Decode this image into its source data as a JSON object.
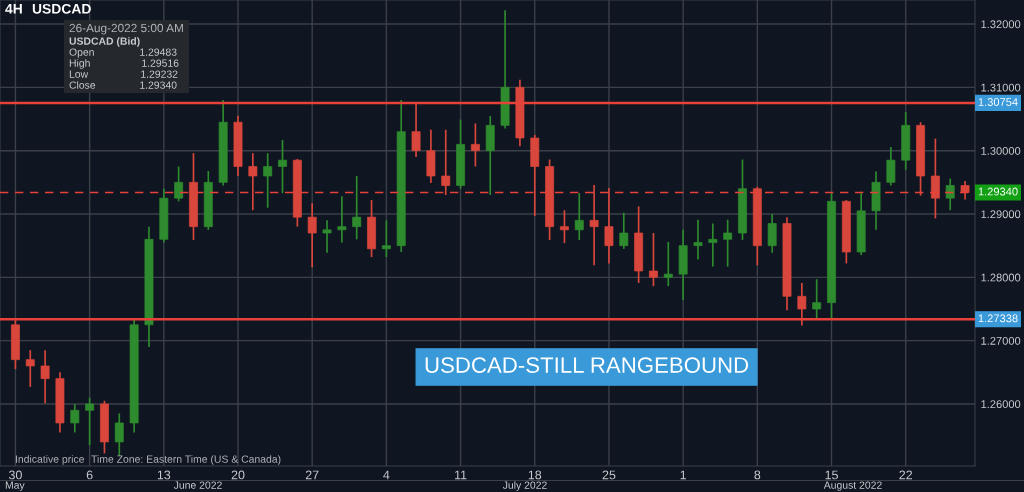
{
  "chart_data": {
    "type": "candlestick",
    "title": "4H",
    "subtitle": "USDCAD",
    "categories": [
      "30",
      null,
      null,
      null,
      null,
      "6",
      null,
      null,
      null,
      null,
      "13",
      null,
      null,
      null,
      null,
      "20",
      null,
      null,
      null,
      null,
      "27",
      null,
      null,
      null,
      null,
      "4",
      null,
      null,
      null,
      null,
      "11",
      null,
      null,
      null,
      null,
      "18",
      null,
      null,
      null,
      null,
      "25",
      null,
      null,
      null,
      null,
      "1",
      null,
      null,
      null,
      null,
      "8",
      null,
      null,
      null,
      null,
      "15",
      null,
      null,
      null,
      null,
      "22",
      null,
      null,
      null,
      null
    ],
    "ohlc": [
      [
        1.2725,
        1.2735,
        1.2655,
        1.267
      ],
      [
        1.267,
        1.2685,
        1.2627,
        1.266
      ],
      [
        1.266,
        1.2685,
        1.2601,
        1.264
      ],
      [
        1.264,
        1.265,
        1.2555,
        1.257
      ],
      [
        1.257,
        1.26,
        1.2555,
        1.259
      ],
      [
        1.259,
        1.261,
        1.2535,
        1.26
      ],
      [
        1.26,
        1.2605,
        1.2522,
        1.254
      ],
      [
        1.254,
        1.2585,
        1.2518,
        1.257
      ],
      [
        1.257,
        1.2735,
        1.2555,
        1.2725
      ],
      [
        1.2725,
        1.288,
        1.269,
        1.286
      ],
      [
        1.286,
        1.294,
        1.2855,
        1.2925
      ],
      [
        1.2925,
        1.2975,
        1.292,
        1.295
      ],
      [
        1.295,
        1.2996,
        1.2859,
        1.288
      ],
      [
        1.288,
        1.2968,
        1.2875,
        1.295
      ],
      [
        1.295,
        1.308,
        1.2945,
        1.3045
      ],
      [
        1.3045,
        1.3055,
        1.296,
        1.2975
      ],
      [
        1.2975,
        1.2996,
        1.2906,
        1.296
      ],
      [
        1.296,
        1.2996,
        1.291,
        1.2975
      ],
      [
        1.2975,
        1.3017,
        1.2933,
        1.2985
      ],
      [
        1.2985,
        1.2987,
        1.288,
        1.2895
      ],
      [
        1.2895,
        1.2917,
        1.2816,
        1.287
      ],
      [
        1.287,
        1.289,
        1.2839,
        1.2875
      ],
      [
        1.2875,
        1.2928,
        1.2855,
        1.288
      ],
      [
        1.288,
        1.296,
        1.286,
        1.2895
      ],
      [
        1.2895,
        1.2922,
        1.2832,
        1.2845
      ],
      [
        1.2845,
        1.289,
        1.2832,
        1.285
      ],
      [
        1.285,
        1.308,
        1.284,
        1.303
      ],
      [
        1.303,
        1.3075,
        1.299,
        1.3
      ],
      [
        1.3,
        1.3033,
        1.2949,
        1.296
      ],
      [
        1.296,
        1.3033,
        1.293,
        1.2945
      ],
      [
        1.2945,
        1.3049,
        1.294,
        1.301
      ],
      [
        1.301,
        1.3043,
        1.2975,
        1.3
      ],
      [
        1.3,
        1.3055,
        1.293,
        1.304
      ],
      [
        1.304,
        1.3222,
        1.3035,
        1.31
      ],
      [
        1.31,
        1.3112,
        1.3007,
        1.302
      ],
      [
        1.302,
        1.3025,
        1.2897,
        1.2975
      ],
      [
        1.2975,
        1.2986,
        1.2859,
        1.288
      ],
      [
        1.288,
        1.2906,
        1.2854,
        1.2875
      ],
      [
        1.2875,
        1.2933,
        1.2859,
        1.289
      ],
      [
        1.289,
        1.2946,
        1.2819,
        1.288
      ],
      [
        1.288,
        1.2941,
        1.2822,
        1.285
      ],
      [
        1.285,
        1.2902,
        1.2845,
        1.287
      ],
      [
        1.287,
        1.2912,
        1.2791,
        1.281
      ],
      [
        1.281,
        1.287,
        1.2786,
        1.28
      ],
      [
        1.28,
        1.2856,
        1.2786,
        1.2805
      ],
      [
        1.2805,
        1.2875,
        1.2764,
        1.285
      ],
      [
        1.285,
        1.2891,
        1.2828,
        1.2855
      ],
      [
        1.2855,
        1.2885,
        1.2817,
        1.286
      ],
      [
        1.286,
        1.2891,
        1.2817,
        1.287
      ],
      [
        1.287,
        1.2986,
        1.2859,
        1.294
      ],
      [
        1.294,
        1.2943,
        1.2819,
        1.285
      ],
      [
        1.285,
        1.29,
        1.2839,
        1.2885
      ],
      [
        1.2885,
        1.2895,
        1.2748,
        1.277
      ],
      [
        1.277,
        1.2791,
        1.2724,
        1.275
      ],
      [
        1.275,
        1.2797,
        1.2735,
        1.276
      ],
      [
        1.276,
        1.2935,
        1.2735,
        1.292
      ],
      [
        1.292,
        1.2922,
        1.2822,
        1.284
      ],
      [
        1.284,
        1.2935,
        1.2835,
        1.2905
      ],
      [
        1.2905,
        1.2967,
        1.2875,
        1.295
      ],
      [
        1.295,
        1.3006,
        1.2945,
        1.2985
      ],
      [
        1.2985,
        1.3061,
        1.297,
        1.304
      ],
      [
        1.304,
        1.3045,
        1.2929,
        1.296
      ],
      [
        1.296,
        1.3019,
        1.2893,
        1.2925
      ],
      [
        1.2925,
        1.2956,
        1.2906,
        1.2945
      ],
      [
        1.2945,
        1.2952,
        1.2923,
        1.2934
      ]
    ],
    "colors": [
      "#d9463c",
      "#d9463c",
      "#d9463c",
      "#d9463c",
      "#2e8b2e",
      "#2e8b2e",
      "#d9463c",
      "#2e8b2e",
      "#2e8b2e",
      "#2e8b2e",
      "#2e8b2e",
      "#2e8b2e",
      "#d9463c",
      "#2e8b2e",
      "#2e8b2e",
      "#d9463c",
      "#d9463c",
      "#2e8b2e",
      "#2e8b2e",
      "#d9463c",
      "#d9463c",
      "#2e8b2e",
      "#2e8b2e",
      "#2e8b2e",
      "#d9463c",
      "#2e8b2e",
      "#2e8b2e",
      "#d9463c",
      "#d9463c",
      "#d9463c",
      "#2e8b2e",
      "#d9463c",
      "#2e8b2e",
      "#2e8b2e",
      "#d9463c",
      "#d9463c",
      "#d9463c",
      "#d9463c",
      "#2e8b2e",
      "#d9463c",
      "#d9463c",
      "#2e8b2e",
      "#d9463c",
      "#d9463c",
      "#2e8b2e",
      "#2e8b2e",
      "#2e8b2e",
      "#2e8b2e",
      "#2e8b2e",
      "#2e8b2e",
      "#d9463c",
      "#2e8b2e",
      "#d9463c",
      "#d9463c",
      "#2e8b2e",
      "#2e8b2e",
      "#d9463c",
      "#2e8b2e",
      "#2e8b2e",
      "#2e8b2e",
      "#2e8b2e",
      "#d9463c",
      "#d9463c",
      "#2e8b2e",
      "#d9463c"
    ],
    "ylim": [
      1.2502,
      1.3238
    ],
    "yticks": [
      {
        "value": 1.26,
        "label": "1.26000"
      },
      {
        "value": 1.27,
        "label": "1.27000"
      },
      {
        "value": 1.28,
        "label": "1.28000"
      },
      {
        "value": 1.29,
        "label": "1.29000"
      },
      {
        "value": 1.3,
        "label": "1.30000"
      },
      {
        "value": 1.31,
        "label": "1.31000"
      },
      {
        "value": 1.32,
        "label": "1.32000"
      }
    ],
    "grid": true,
    "ref_lines": [
      {
        "axis": "y",
        "value": 1.30754,
        "label": "1.30754",
        "color": "#e8413a"
      },
      {
        "axis": "y",
        "value": 1.27338,
        "label": "1.27338",
        "color": "#e8413a"
      },
      {
        "axis": "y",
        "value": 1.2934,
        "label": "1.29340",
        "color": "#e8413a",
        "line_style": "dashed"
      }
    ],
    "annotations": [
      "26-Aug-2022 5:00 AM",
      "USDCAD (Bid)",
      "Open",
      "1.29483",
      "High",
      "1.29516",
      "Low",
      "1.29232",
      "Close",
      "1.29340",
      "Indicative price",
      "Time Zone: Eastern Time (US & Canada)",
      "USDCAD-STILL RANGEBOUND",
      "May",
      "June 2022",
      "July 2022",
      "August 2022"
    ]
  }
}
